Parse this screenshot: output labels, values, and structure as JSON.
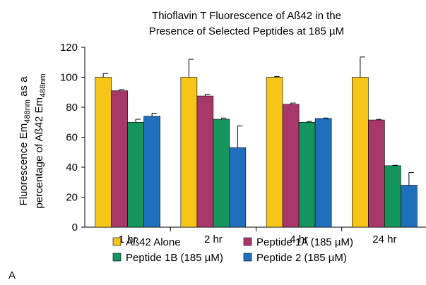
{
  "chart_data": {
    "type": "bar",
    "title_line1": "Thioflavin T Fluorescence of Aß42 in the",
    "title_line2": "Presence of Selected Peptides at 185 µM",
    "ylabel_line1": "Fluorescence Em",
    "ylabel_line1_sub": "488nm",
    "ylabel_line1_tail": " as a",
    "ylabel_line2": "percentage of Aß42 Em",
    "ylabel_line2_sub": "488nm",
    "xlabel": "",
    "ylim": [
      0,
      120
    ],
    "yticks": [
      0,
      20,
      40,
      60,
      80,
      100,
      120
    ],
    "categories": [
      "1 hr",
      "2 hr",
      "4 hr",
      "24 hr"
    ],
    "series": [
      {
        "name": "Aß42 Alone",
        "color": "#f5c518",
        "values": [
          100,
          100,
          100,
          100
        ],
        "errors": [
          2.5,
          12,
          0.5,
          13.5
        ]
      },
      {
        "name": "Peptide 1A (185 µM)",
        "color": "#a8386a",
        "values": [
          91,
          87.5,
          82,
          71.5
        ],
        "errors": [
          0.8,
          1.2,
          0.8,
          0.4
        ]
      },
      {
        "name": "Peptide 1B (185 µM)",
        "color": "#14955e",
        "values": [
          70,
          72,
          70,
          41
        ],
        "errors": [
          2,
          0.8,
          0.5,
          0.3
        ]
      },
      {
        "name": "Peptide 2 (185 µM)",
        "color": "#1f6fbd",
        "values": [
          74,
          53,
          72.5,
          28
        ],
        "errors": [
          2,
          14.5,
          0.3,
          8.5
        ]
      }
    ],
    "legend_position": "bottom",
    "grid": false,
    "panel_label": "A"
  }
}
